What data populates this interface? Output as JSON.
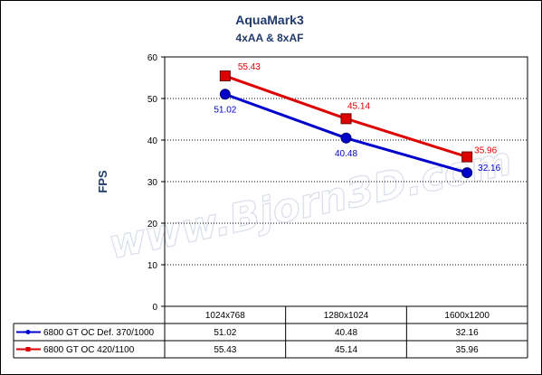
{
  "chart_data": {
    "type": "line",
    "title": "AquaMark3",
    "subtitle": "4xAA & 8xAF",
    "ylabel": "FPS",
    "xlabel": "",
    "ylim": [
      0,
      60
    ],
    "yticks": [
      0,
      10,
      20,
      30,
      40,
      50,
      60
    ],
    "grid": true,
    "legend": "table-below",
    "categories": [
      "1024x768",
      "1280x1024",
      "1600x1200"
    ],
    "series": [
      {
        "name": "6800 GT OC Def. 370/1000",
        "values": [
          51.02,
          40.48,
          32.16
        ],
        "color": "#0000cc",
        "marker": "circle"
      },
      {
        "name": "6800 GT OC 420/1100",
        "values": [
          55.43,
          45.14,
          35.96
        ],
        "color": "#dd0000",
        "marker": "square"
      }
    ],
    "watermark": "www.Bjorn3D.com"
  }
}
